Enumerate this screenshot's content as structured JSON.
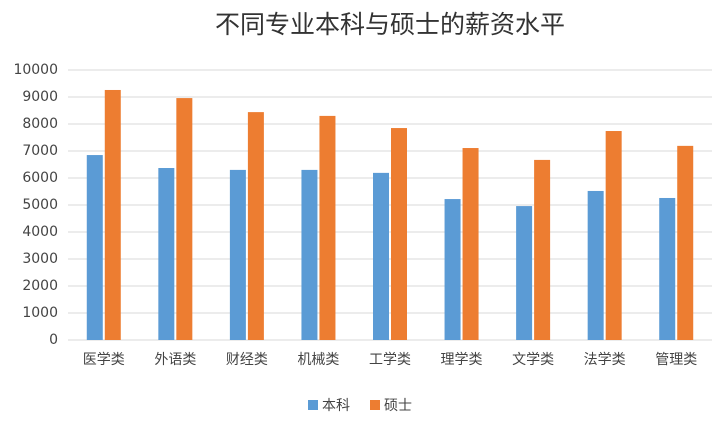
{
  "chart_data": {
    "type": "bar",
    "title": "不同专业本科与硕士的薪资水平",
    "categories": [
      "医学类",
      "外语类",
      "财经类",
      "机械类",
      "工学类",
      "理学类",
      "文学类",
      "法学类",
      "管理类"
    ],
    "series": [
      {
        "name": "本科",
        "color": "#5b9bd5",
        "values": [
          6850,
          6370,
          6300,
          6300,
          6190,
          5220,
          4960,
          5520,
          5260
        ]
      },
      {
        "name": "硕士",
        "color": "#ed7d31",
        "values": [
          9260,
          8960,
          8440,
          8300,
          7850,
          7110,
          6670,
          7740,
          7190
        ]
      }
    ],
    "ylim": [
      0,
      10000
    ],
    "yticks": [
      0,
      1000,
      2000,
      3000,
      4000,
      5000,
      6000,
      7000,
      8000,
      9000,
      10000
    ],
    "grid": true,
    "legend": "bottom"
  }
}
